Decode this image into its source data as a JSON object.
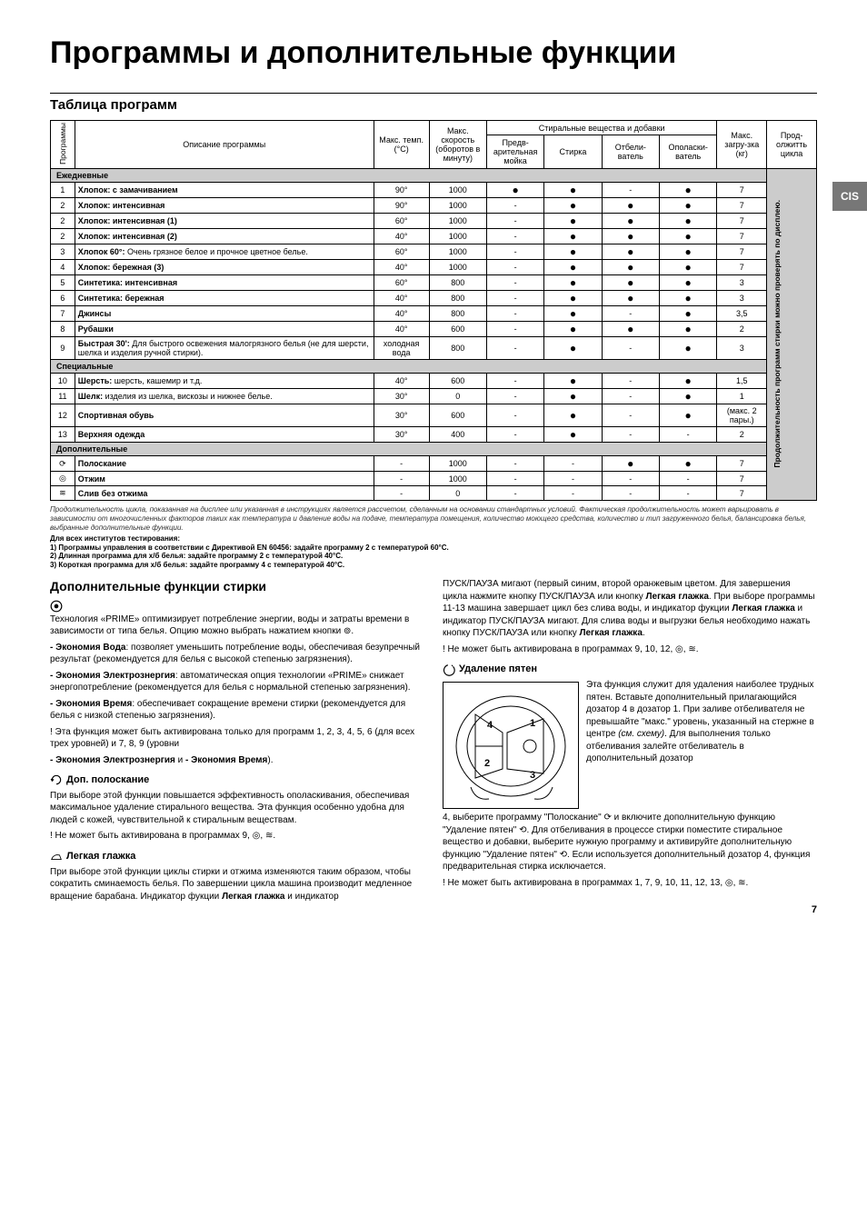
{
  "title": "Программы и дополнительные функции",
  "side_tab": "CIS",
  "table_section_title": "Таблица программ",
  "headers": {
    "prog": "Программы",
    "desc": "Описание программы",
    "temp": "Макс. темп. (°C)",
    "speed": "Макс. скорость (оборотов в минуту)",
    "detergents_group": "Стиральные вещества и добавки",
    "prewash": "Предв-арительная мойка",
    "wash": "Стирка",
    "bleach": "Отбели-ватель",
    "softener": "Ополаски-ватель",
    "load": "Макс. загру-зка (кг)",
    "duration": "Прод-олжитть цикла",
    "duration_note": "Продолжительность программ стирки можно проверять по дисплею."
  },
  "groups": {
    "daily": "Ежедневные",
    "special": "Специальные",
    "additional": "Дополнительные"
  },
  "rows": [
    {
      "g": "daily"
    },
    {
      "n": "1",
      "d": "Хлопок: с замачиванием",
      "t": "90°",
      "s": "1000",
      "pw": "●",
      "w": "●",
      "b": "-",
      "sf": "●",
      "l": "7"
    },
    {
      "n": "2",
      "d": "Хлопок: интенсивная",
      "t": "90°",
      "s": "1000",
      "pw": "-",
      "w": "●",
      "b": "●",
      "sf": "●",
      "l": "7"
    },
    {
      "n": "2",
      "d": "Хлопок: интенсивная (1)",
      "t": "60°",
      "s": "1000",
      "pw": "-",
      "w": "●",
      "b": "●",
      "sf": "●",
      "l": "7"
    },
    {
      "n": "2",
      "d": "Хлопок: интенсивная (2)",
      "t": "40°",
      "s": "1000",
      "pw": "-",
      "w": "●",
      "b": "●",
      "sf": "●",
      "l": "7"
    },
    {
      "n": "3",
      "d": "Хлопок 60°:",
      "sub": " Очень грязное белое и прочное цветное белье.",
      "t": "60°",
      "s": "1000",
      "pw": "-",
      "w": "●",
      "b": "●",
      "sf": "●",
      "l": "7"
    },
    {
      "n": "4",
      "d": "Хлопок: бережная (3)",
      "t": "40°",
      "s": "1000",
      "pw": "-",
      "w": "●",
      "b": "●",
      "sf": "●",
      "l": "7"
    },
    {
      "n": "5",
      "d": "Синтетика: интенсивная",
      "t": "60°",
      "s": "800",
      "pw": "-",
      "w": "●",
      "b": "●",
      "sf": "●",
      "l": "3"
    },
    {
      "n": "6",
      "d": "Синтетика: бережная",
      "t": "40°",
      "s": "800",
      "pw": "-",
      "w": "●",
      "b": "●",
      "sf": "●",
      "l": "3"
    },
    {
      "n": "7",
      "d": "Джинсы",
      "t": "40°",
      "s": "800",
      "pw": "-",
      "w": "●",
      "b": "-",
      "sf": "●",
      "l": "3,5"
    },
    {
      "n": "8",
      "d": "Рубашки",
      "t": "40°",
      "s": "600",
      "pw": "-",
      "w": "●",
      "b": "●",
      "sf": "●",
      "l": "2"
    },
    {
      "n": "9",
      "d": "Быстрая 30':",
      "sub": " Для быстрого освежения малогрязного белья (не для шерсти, шелка и изделия ручной стирки).",
      "t": "холодная вода",
      "s": "800",
      "pw": "-",
      "w": "●",
      "b": "-",
      "sf": "●",
      "l": "3"
    },
    {
      "g": "special"
    },
    {
      "n": "10",
      "d": "Шерсть:",
      "sub": " шерсть, кашемир и т.д.",
      "t": "40°",
      "s": "600",
      "pw": "-",
      "w": "●",
      "b": "-",
      "sf": "●",
      "l": "1,5"
    },
    {
      "n": "11",
      "d": "Шелк:",
      "sub": " изделия из шелка, вискозы и нижнее белье.",
      "t": "30°",
      "s": "0",
      "pw": "-",
      "w": "●",
      "b": "-",
      "sf": "●",
      "l": "1"
    },
    {
      "n": "12",
      "d": "Спортивная обувь",
      "t": "30°",
      "s": "600",
      "pw": "-",
      "w": "●",
      "b": "-",
      "sf": "●",
      "l": "(макс. 2 пары.)"
    },
    {
      "n": "13",
      "d": "Верхняя одежда",
      "t": "30°",
      "s": "400",
      "pw": "-",
      "w": "●",
      "b": "-",
      "sf": "-",
      "l": "2"
    },
    {
      "g": "additional"
    },
    {
      "n": "⟳",
      "d": "Полоскание",
      "t": "-",
      "s": "1000",
      "pw": "-",
      "w": "-",
      "b": "●",
      "sf": "●",
      "l": "7"
    },
    {
      "n": "◎",
      "d": "Отжим",
      "t": "-",
      "s": "1000",
      "pw": "-",
      "w": "-",
      "b": "-",
      "sf": "-",
      "l": "7"
    },
    {
      "n": "≋",
      "d": "Слив без отжима",
      "t": "-",
      "s": "0",
      "pw": "-",
      "w": "-",
      "b": "-",
      "sf": "-",
      "l": "7"
    }
  ],
  "footnote": "Продолжительность цикла, показанная на дисплее или указанная в инструкциях является рассчетом, сделанным на основании стандартных условий. Фактическая продолжительность может варьировать в зависимости от многочисленных факторов таких как температура и давление воды на подаче, температура помещения, количество моющего средства, количество и тип загруженного белья, балансировка белья, выбранные дополнительные функции.",
  "footnote_bold": "Для всех институтов тестирования:\n1) Программы управления в соответствии с Директивой EN 60456: задайте программу 2 с температурой 60°C.\n2) Длинная программа для х/б белья: задайте программу 2 с температурой 40°C.\n3) Короткая программа для х/б белья: задайте программу 4 с температурой 40°C.",
  "left": {
    "h2": "Дополнительные функции стирки",
    "prime_p1": "Технология «PRIME» оптимизирует потребление энергии, воды и затраты времени в зависимости от типа белья. Опцию можно выбрать нажатием кнопки ⊚.",
    "eco1_t": "- Экономия Вода",
    "eco1_b": ": позволяет уменьшить потребление воды, обеспечивая безупречный результат (рекомендуется для белья с высокой степенью загрязнения).",
    "eco2_t": "- Экономия Электрознергия",
    "eco2_b": ": автоматическая опция технологии «PRIME» снижает энергопотребление (рекомендуется для белья с нормальной степенью загрязнения).",
    "eco3_t": "- Экономия Время",
    "eco3_b": ": обеспечивает сокращение времени стирки (рекомендуется для белья с низкой степенью загрязнения).",
    "prime_note": "! Эта функция может быть активирована только для программ 1, 2, 3, 4, 5, 6 (для всех трех уровней) и 7, 8, 9 (уровни",
    "prime_note2": "- Экономия Электрознергия",
    "prime_note3": " и ",
    "prime_note4": "- Экономия Время",
    "prime_note5": ").",
    "rinse_h": "Доп. полоскание",
    "rinse_p": "При выборе этой функции повышается эффективность ополаскивания, обеспечивая максимальное удаление стирального вещества. Эта функция особенно удобна для людей с кожей, чувствительной к стиральным веществам.",
    "rinse_note": "! Не может быть активирована в программах 9, ◎, ≋.",
    "iron_h": "Легкая глажка",
    "iron_p": "При выборе этой функции циклы стирки и отжима изменяются таким образом, чтобы сократить сминаемость белья. По завершении цикла машина производит медленное вращение барабана. Индикатор фукции ",
    "iron_b": "Легкая глажка",
    "iron_p2": " и индикатор"
  },
  "right": {
    "cont1": "ПУСК/ПАУЗА мигают (первый синим, второй оранжевым цветом. Для завершения цикла нажмите кнопку ПУСК/ПАУЗА или кнопку ",
    "cont1b": "Легкая глажка",
    "cont2": ". При выборе программы 11-13 машина завершает цикл без слива воды, и индикатор фукции ",
    "cont2b": "Легкая глажка",
    "cont3": " и индикатор ПУСК/ПАУЗА мигают. Для слива воды и выгрузки белья необходимо нажать кнопку ПУСК/ПАУЗА или кнопку ",
    "cont3b": "Легкая глажка",
    "cont4": ".",
    "cont_note": "! Не может быть активирована в программах 9, 10, 12, ◎, ≋.",
    "stain_h": "Удаление пятен",
    "stain_p1": "Эта функция служит для удаления наиболее трудных пятен. Вставьте дополнительный прилагающийся дозатор 4 в дозатор 1. При заливе отбеливателя не превышайте \"макс.\" уровень, указанный на стержне в центре ",
    "stain_i": "(см. схему)",
    "stain_p1b": ". Для выполнения только отбеливания залейте отбеливатель в дополнительный дозатор",
    "stain_p2": "4, выберите программу \"Полоскание\" ⟳ и включите дополнительную функцию \"Удаление пятен\" ⟲. Для отбеливания в процессе стирки поместите стиральное вещество и добавки, выберите нужную программу и активируйте дополнительную функцию \"Удаление пятен\" ⟲. Если используется дополнительный дозатор 4, функция предварительная стирка исключается.",
    "stain_note": "! Не может быть активирована в программах 1, 7, 9, 10, 11, 12, 13, ◎, ≋."
  },
  "page_number": "7",
  "dispenser_labels": {
    "a": "4",
    "b": "1",
    "c": "2",
    "d": "3"
  }
}
